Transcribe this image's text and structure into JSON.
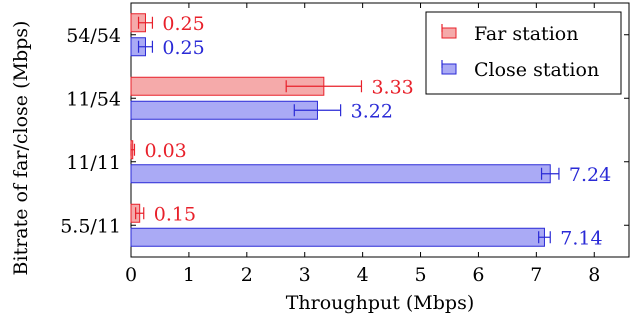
{
  "chart_data": {
    "type": "bar",
    "orientation": "horizontal",
    "xlabel": "Throughput (Mbps)",
    "ylabel": "Bitrate of far/close (Mbps)",
    "xlim": [
      0,
      8.6
    ],
    "xticks": [
      0,
      1,
      2,
      3,
      4,
      5,
      6,
      7,
      8
    ],
    "categories": [
      "5.5/11",
      "11/11",
      "11/54",
      "54/54"
    ],
    "series": [
      {
        "name": "Far station",
        "color": "#e8202a",
        "fill": "#f5aaaa",
        "values": [
          0.15,
          0.03,
          3.33,
          0.25
        ],
        "labels": [
          "0.15",
          "0.03",
          "3.33",
          "0.25"
        ],
        "errors": [
          0.07,
          0.03,
          0.65,
          0.12
        ]
      },
      {
        "name": "Close station",
        "color": "#2a2ad6",
        "fill": "#aaaaf5",
        "values": [
          7.14,
          7.24,
          3.22,
          0.25
        ],
        "labels": [
          "7.14",
          "7.24",
          "3.22",
          "0.25"
        ],
        "errors": [
          0.1,
          0.15,
          0.4,
          0.12
        ]
      }
    ],
    "grid": false,
    "legend_position": "top-right"
  }
}
